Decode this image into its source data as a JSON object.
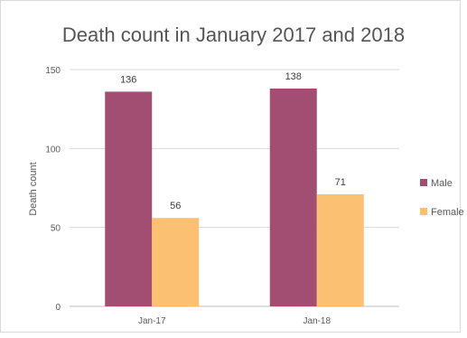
{
  "chart_data": {
    "type": "bar",
    "title": "Death count in January 2017 and 2018",
    "xlabel": "",
    "ylabel": "Death count",
    "categories": [
      "Jan-17",
      "Jan-18"
    ],
    "series": [
      {
        "name": "Male",
        "values": [
          136,
          138
        ],
        "color": "#a24d72"
      },
      {
        "name": "Female",
        "values": [
          56,
          71
        ],
        "color": "#fbc071"
      }
    ],
    "ylim": [
      0,
      150
    ],
    "yticks": [
      0,
      50,
      100,
      150
    ],
    "grid": true,
    "legend": "right"
  }
}
